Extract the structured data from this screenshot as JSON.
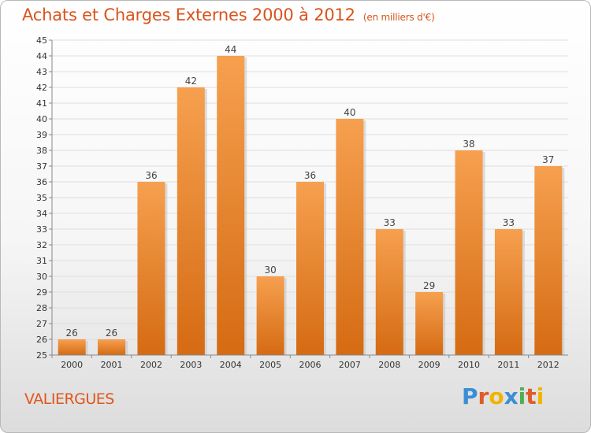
{
  "header": {
    "title": "Achats et Charges Externes 2000 à 2012",
    "subtitle": "(en milliers d'€)"
  },
  "footer": {
    "commune": "VALIERGUES",
    "logo_text": "Proxiti",
    "logo_colors": [
      "#3b8ed6",
      "#e05a2a",
      "#f0b400",
      "#3b8ed6",
      "#4caf50",
      "#e05a2a",
      "#f0b400"
    ]
  },
  "colors": {
    "bar_light": "#f6a04f",
    "bar_dark": "#d56b13",
    "title": "#d9531b"
  },
  "chart_data": {
    "type": "bar",
    "categories": [
      "2000",
      "2001",
      "2002",
      "2003",
      "2004",
      "2005",
      "2006",
      "2007",
      "2008",
      "2009",
      "2010",
      "2011",
      "2012"
    ],
    "values": [
      26,
      26,
      36,
      42,
      44,
      30,
      36,
      40,
      33,
      29,
      38,
      33,
      37
    ],
    "data_labels": [
      "26",
      "26",
      "36",
      "42",
      "44",
      "30",
      "36",
      "40",
      "33",
      "29",
      "38",
      "33",
      "37"
    ],
    "title": "Achats et Charges Externes 2000 à 2012",
    "ylim": [
      25,
      45
    ],
    "yticks": [
      "25",
      "26",
      "27",
      "28",
      "29",
      "30",
      "31",
      "32",
      "33",
      "34",
      "35",
      "36",
      "37",
      "38",
      "39",
      "40",
      "41",
      "42",
      "43",
      "44",
      "45"
    ],
    "grid": true,
    "legend": "none"
  }
}
